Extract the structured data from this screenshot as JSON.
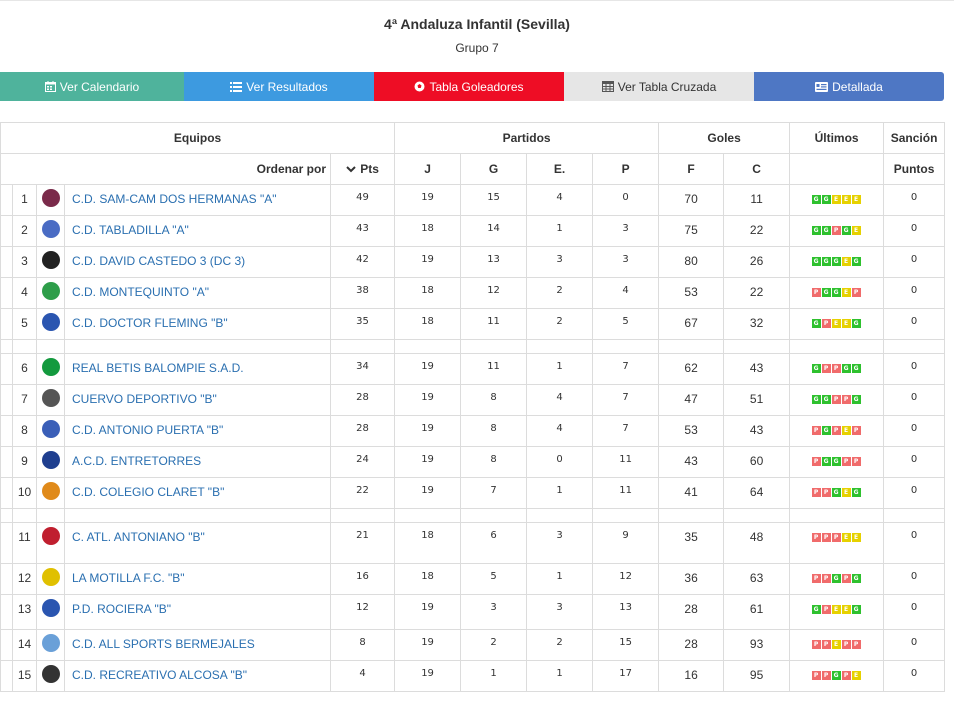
{
  "title": "4ª Andaluza Infantil (Sevilla)",
  "subtitle": "Grupo 7",
  "buttons": {
    "calendario": "Ver Calendario",
    "resultados": "Ver Resultados",
    "goleadores": "Tabla Goleadores",
    "cruzada": "Ver Tabla Cruzada",
    "detallada": "Detallada"
  },
  "colors": {
    "calendario": "#4fb39c",
    "resultados": "#3d9ae0",
    "goleadores": "#ee0d25",
    "cruzada": "#e6e6e6",
    "detallada": "#4e77c4",
    "win": "#2ec12e",
    "draw": "#e6d100",
    "loss": "#f06b6b",
    "team_link": "#2a6fb0"
  },
  "header": {
    "equipos": "Equipos",
    "partidos": "Partidos",
    "goles": "Goles",
    "ultimos": "Últimos",
    "sancion": "Sanción",
    "ordenar_por": "Ordenar por",
    "pts": "Pts",
    "j": "J",
    "g": "G",
    "e": "E.",
    "p": "P",
    "f": "F",
    "c": "C",
    "puntos": "Puntos"
  },
  "teams": [
    {
      "pos": "1",
      "name": "C.D. SAM-CAM DOS HERMANAS \"A\"",
      "pts": "49",
      "j": "19",
      "g": "15",
      "e": "4",
      "p": "0",
      "f": "70",
      "c": "11",
      "last": [
        "G",
        "G",
        "E",
        "E",
        "E"
      ],
      "sancion": "0",
      "logo_color": "#7a2a4a"
    },
    {
      "pos": "2",
      "name": "C.D. TABLADILLA \"A\"",
      "pts": "43",
      "j": "18",
      "g": "14",
      "e": "1",
      "p": "3",
      "f": "75",
      "c": "22",
      "last": [
        "G",
        "G",
        "P",
        "G",
        "E"
      ],
      "sancion": "0",
      "logo_color": "#4a6cc4"
    },
    {
      "pos": "3",
      "name": "C.D. DAVID CASTEDO 3 (DC 3)",
      "pts": "42",
      "j": "19",
      "g": "13",
      "e": "3",
      "p": "3",
      "f": "80",
      "c": "26",
      "last": [
        "G",
        "G",
        "G",
        "E",
        "G"
      ],
      "sancion": "0",
      "logo_color": "#222222"
    },
    {
      "pos": "4",
      "name": "C.D. MONTEQUINTO \"A\"",
      "pts": "38",
      "j": "18",
      "g": "12",
      "e": "2",
      "p": "4",
      "f": "53",
      "c": "22",
      "last": [
        "P",
        "G",
        "G",
        "E",
        "P"
      ],
      "sancion": "0",
      "logo_color": "#2e9e4a"
    },
    {
      "pos": "5",
      "name": "C.D. DOCTOR FLEMING \"B\"",
      "pts": "35",
      "j": "18",
      "g": "11",
      "e": "2",
      "p": "5",
      "f": "67",
      "c": "32",
      "last": [
        "G",
        "P",
        "E",
        "E",
        "G"
      ],
      "sancion": "0",
      "logo_color": "#2a55b0"
    },
    {
      "pos": "6",
      "name": "REAL BETIS BALOMPIE S.A.D.",
      "pts": "34",
      "j": "19",
      "g": "11",
      "e": "1",
      "p": "7",
      "f": "62",
      "c": "43",
      "last": [
        "G",
        "P",
        "P",
        "G",
        "G"
      ],
      "sancion": "0",
      "logo_color": "#139a3e"
    },
    {
      "pos": "7",
      "name": "CUERVO DEPORTIVO \"B\"",
      "pts": "28",
      "j": "19",
      "g": "8",
      "e": "4",
      "p": "7",
      "f": "47",
      "c": "51",
      "last": [
        "G",
        "G",
        "P",
        "P",
        "G"
      ],
      "sancion": "0",
      "logo_color": "#555555"
    },
    {
      "pos": "8",
      "name": "C.D. ANTONIO PUERTA \"B\"",
      "pts": "28",
      "j": "19",
      "g": "8",
      "e": "4",
      "p": "7",
      "f": "53",
      "c": "43",
      "last": [
        "P",
        "G",
        "P",
        "E",
        "P"
      ],
      "sancion": "0",
      "logo_color": "#3a5fb8"
    },
    {
      "pos": "9",
      "name": "A.C.D. ENTRETORRES",
      "pts": "24",
      "j": "19",
      "g": "8",
      "e": "0",
      "p": "11",
      "f": "43",
      "c": "60",
      "last": [
        "P",
        "G",
        "G",
        "P",
        "P"
      ],
      "sancion": "0",
      "logo_color": "#1f3f8f"
    },
    {
      "pos": "10",
      "name": "C.D. COLEGIO CLARET \"B\"",
      "pts": "22",
      "j": "19",
      "g": "7",
      "e": "1",
      "p": "11",
      "f": "41",
      "c": "64",
      "last": [
        "P",
        "P",
        "G",
        "E",
        "G"
      ],
      "sancion": "0",
      "logo_color": "#e08a1a"
    },
    {
      "pos": "11",
      "name": "C. ATL. ANTONIANO \"B\"",
      "pts": "21",
      "j": "18",
      "g": "6",
      "e": "3",
      "p": "9",
      "f": "35",
      "c": "48",
      "last": [
        "P",
        "P",
        "P",
        "E",
        "E"
      ],
      "sancion": "0",
      "logo_color": "#c01f2f"
    },
    {
      "pos": "12",
      "name": "LA MOTILLA F.C. \"B\"",
      "pts": "16",
      "j": "18",
      "g": "5",
      "e": "1",
      "p": "12",
      "f": "36",
      "c": "63",
      "last": [
        "P",
        "P",
        "G",
        "P",
        "G"
      ],
      "sancion": "0",
      "logo_color": "#e0c000"
    },
    {
      "pos": "13",
      "name": "P.D. ROCIERA \"B\"",
      "pts": "12",
      "j": "19",
      "g": "3",
      "e": "3",
      "p": "13",
      "f": "28",
      "c": "61",
      "last": [
        "G",
        "P",
        "E",
        "E",
        "G"
      ],
      "sancion": "0",
      "logo_color": "#2a55b0"
    },
    {
      "pos": "14",
      "name": "C.D. ALL SPORTS BERMEJALES",
      "pts": "8",
      "j": "19",
      "g": "2",
      "e": "2",
      "p": "15",
      "f": "28",
      "c": "93",
      "last": [
        "P",
        "P",
        "E",
        "P",
        "P"
      ],
      "sancion": "0",
      "logo_color": "#6aa0d8"
    },
    {
      "pos": "15",
      "name": "C.D. RECREATIVO ALCOSA \"B\"",
      "pts": "4",
      "j": "19",
      "g": "1",
      "e": "1",
      "p": "17",
      "f": "16",
      "c": "95",
      "last": [
        "P",
        "P",
        "G",
        "P",
        "E"
      ],
      "sancion": "0",
      "logo_color": "#333333"
    }
  ]
}
